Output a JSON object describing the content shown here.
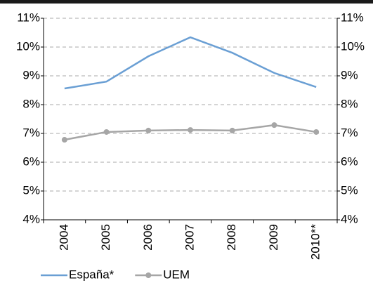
{
  "chart_data": {
    "type": "line",
    "categories": [
      "2004",
      "2005",
      "2006",
      "2007",
      "2008",
      "2009",
      "2010**"
    ],
    "series": [
      {
        "name": "España*",
        "color": "#6a9fd4",
        "marker": false,
        "values": [
          8.56,
          8.8,
          9.68,
          10.34,
          9.8,
          9.1,
          8.61
        ]
      },
      {
        "name": "UEM",
        "color": "#a6a6a6",
        "marker": true,
        "values": [
          6.78,
          7.05,
          7.1,
          7.12,
          7.1,
          7.29,
          7.05
        ]
      }
    ],
    "ylim": [
      4,
      11
    ],
    "yticks": [
      {
        "value": 4,
        "label": "4%"
      },
      {
        "value": 5,
        "label": "5%"
      },
      {
        "value": 6,
        "label": "6%"
      },
      {
        "value": 7,
        "label": "7%"
      },
      {
        "value": 8,
        "label": "8%"
      },
      {
        "value": 9,
        "label": "9%"
      },
      {
        "value": 10,
        "label": "10%"
      },
      {
        "value": 11,
        "label": "11%"
      }
    ],
    "y2lim": [
      4,
      11
    ],
    "y2ticks": [
      {
        "value": 4,
        "label": "4%"
      },
      {
        "value": 5,
        "label": "5%"
      },
      {
        "value": 6,
        "label": "6%"
      },
      {
        "value": 7,
        "label": "7%"
      },
      {
        "value": 8,
        "label": "8%"
      },
      {
        "value": 9,
        "label": "9%"
      },
      {
        "value": 10,
        "label": "10%"
      },
      {
        "value": 11,
        "label": "11%"
      }
    ],
    "grid": true,
    "legend": "bottom-left"
  }
}
